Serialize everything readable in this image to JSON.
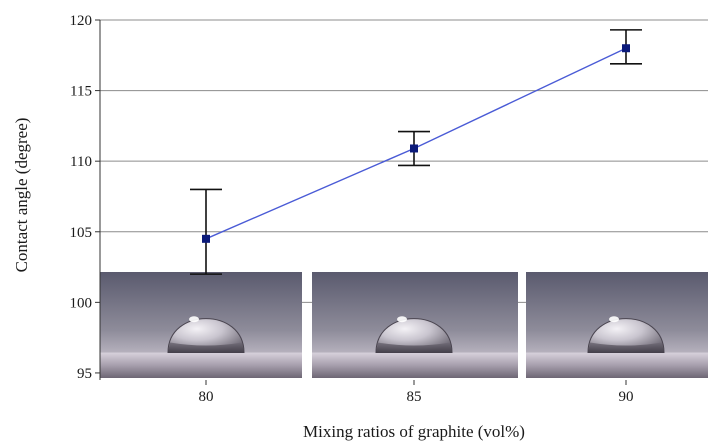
{
  "chart_data": {
    "type": "line",
    "xlabel": "Mixing ratios of graphite (vol%)",
    "ylabel": "Contact angle (degree)",
    "categories": [
      "80",
      "85",
      "90"
    ],
    "series": [
      {
        "values": [
          104.5,
          110.9,
          118.0
        ],
        "error_low": [
          102.0,
          109.7,
          116.9
        ],
        "error_high": [
          108.0,
          112.1,
          119.3
        ]
      }
    ],
    "yticks": [
      "95",
      "100",
      "105",
      "110",
      "115",
      "120"
    ],
    "ylim": [
      94.5,
      120
    ],
    "grid": "horizontal",
    "line_color": "#4a5bd6",
    "marker_color": "#0b1a7a",
    "photo_insets": [
      {
        "category": "80",
        "depicts": "water droplet on graphite surface"
      },
      {
        "category": "85",
        "depicts": "water droplet on graphite surface"
      },
      {
        "category": "90",
        "depicts": "water droplet on graphite surface"
      }
    ]
  }
}
